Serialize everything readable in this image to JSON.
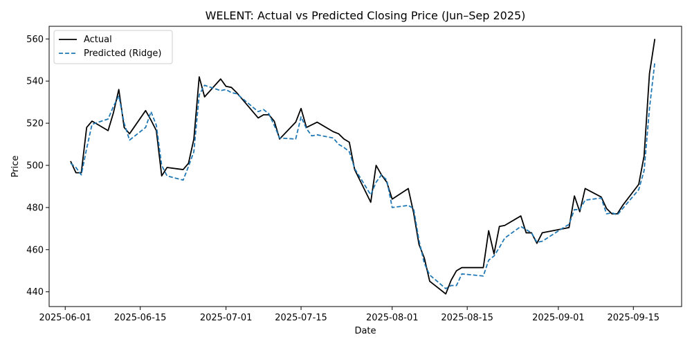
{
  "chart_data": {
    "type": "line",
    "title": "WELENT: Actual vs Predicted Closing Price (Jun–Sep 2025)",
    "xlabel": "Date",
    "ylabel": "Price",
    "xlim": [
      "2025-05-29",
      "2025-09-24"
    ],
    "ylim": [
      433,
      566
    ],
    "x_ticks": [
      "2025-06-01",
      "2025-06-15",
      "2025-07-01",
      "2025-07-15",
      "2025-08-01",
      "2025-08-15",
      "2025-09-01",
      "2025-09-15"
    ],
    "y_ticks": [
      440,
      460,
      480,
      500,
      520,
      540,
      560
    ],
    "grid": false,
    "legend": "upper-left",
    "series": [
      {
        "name": "Actual",
        "color": "#000000",
        "style": "solid",
        "points": [
          [
            "2025-06-02",
            502.0
          ],
          [
            "2025-06-03",
            496.5
          ],
          [
            "2025-06-04",
            496.5
          ],
          [
            "2025-06-05",
            518.0
          ],
          [
            "2025-06-06",
            521.0
          ],
          [
            "2025-06-09",
            516.5
          ],
          [
            "2025-06-10",
            525.0
          ],
          [
            "2025-06-11",
            536.0
          ],
          [
            "2025-06-12",
            518.0
          ],
          [
            "2025-06-13",
            515.0
          ],
          [
            "2025-06-16",
            526.0
          ],
          [
            "2025-06-17",
            521.5
          ],
          [
            "2025-06-18",
            516.5
          ],
          [
            "2025-06-19",
            495.0
          ],
          [
            "2025-06-20",
            499.0
          ],
          [
            "2025-06-23",
            498.0
          ],
          [
            "2025-06-24",
            501.0
          ],
          [
            "2025-06-25",
            512.5
          ],
          [
            "2025-06-26",
            542.0
          ],
          [
            "2025-06-27",
            532.5
          ],
          [
            "2025-06-30",
            541.0
          ],
          [
            "2025-07-01",
            537.5
          ],
          [
            "2025-07-02",
            537.0
          ],
          [
            "2025-07-03",
            534.5
          ],
          [
            "2025-07-07",
            522.5
          ],
          [
            "2025-07-08",
            524.0
          ],
          [
            "2025-07-09",
            524.0
          ],
          [
            "2025-07-10",
            521.0
          ],
          [
            "2025-07-11",
            512.5
          ],
          [
            "2025-07-14",
            520.5
          ],
          [
            "2025-07-15",
            527.0
          ],
          [
            "2025-07-16",
            518.0
          ],
          [
            "2025-07-18",
            520.5
          ],
          [
            "2025-07-21",
            516.0
          ],
          [
            "2025-07-22",
            515.0
          ],
          [
            "2025-07-23",
            512.5
          ],
          [
            "2025-07-24",
            511.0
          ],
          [
            "2025-07-25",
            498.0
          ],
          [
            "2025-07-28",
            482.5
          ],
          [
            "2025-07-29",
            500.0
          ],
          [
            "2025-07-30",
            495.5
          ],
          [
            "2025-07-31",
            492.0
          ],
          [
            "2025-08-01",
            484.0
          ],
          [
            "2025-08-04",
            489.0
          ],
          [
            "2025-08-05",
            477.5
          ],
          [
            "2025-08-06",
            462.5
          ],
          [
            "2025-08-07",
            456.0
          ],
          [
            "2025-08-08",
            445.0
          ],
          [
            "2025-08-11",
            439.0
          ],
          [
            "2025-08-12",
            445.5
          ],
          [
            "2025-08-13",
            450.0
          ],
          [
            "2025-08-14",
            451.5
          ],
          [
            "2025-08-18",
            451.5
          ],
          [
            "2025-08-19",
            469.0
          ],
          [
            "2025-08-20",
            458.0
          ],
          [
            "2025-08-21",
            471.0
          ],
          [
            "2025-08-22",
            471.5
          ],
          [
            "2025-08-25",
            476.0
          ],
          [
            "2025-08-26",
            468.0
          ],
          [
            "2025-08-27",
            468.0
          ],
          [
            "2025-08-28",
            463.0
          ],
          [
            "2025-08-29",
            468.0
          ],
          [
            "2025-09-02",
            470.0
          ],
          [
            "2025-09-03",
            470.5
          ],
          [
            "2025-09-04",
            485.5
          ],
          [
            "2025-09-05",
            478.0
          ],
          [
            "2025-09-06",
            489.0
          ],
          [
            "2025-09-09",
            485.0
          ],
          [
            "2025-09-10",
            479.5
          ],
          [
            "2025-09-11",
            477.0
          ],
          [
            "2025-09-12",
            477.0
          ],
          [
            "2025-09-13",
            481.0
          ],
          [
            "2025-09-16",
            491.0
          ],
          [
            "2025-09-17",
            504.5
          ],
          [
            "2025-09-18",
            543.5
          ],
          [
            "2025-09-19",
            560.0
          ]
        ]
      },
      {
        "name": "Predicted (Ridge)",
        "color": "#1f77b4",
        "style": "dashed",
        "points": [
          [
            "2025-06-02",
            501.0
          ],
          [
            "2025-06-03",
            499.0
          ],
          [
            "2025-06-04",
            495.5
          ],
          [
            "2025-06-05",
            508.0
          ],
          [
            "2025-06-06",
            519.5
          ],
          [
            "2025-06-09",
            522.0
          ],
          [
            "2025-06-10",
            528.0
          ],
          [
            "2025-06-11",
            533.0
          ],
          [
            "2025-06-12",
            520.0
          ],
          [
            "2025-06-13",
            512.0
          ],
          [
            "2025-06-16",
            518.0
          ],
          [
            "2025-06-17",
            525.5
          ],
          [
            "2025-06-18",
            519.0
          ],
          [
            "2025-06-19",
            500.0
          ],
          [
            "2025-06-20",
            495.0
          ],
          [
            "2025-06-23",
            493.0
          ],
          [
            "2025-06-24",
            499.5
          ],
          [
            "2025-06-25",
            506.5
          ],
          [
            "2025-06-26",
            533.5
          ],
          [
            "2025-06-27",
            538.0
          ],
          [
            "2025-06-30",
            535.5
          ],
          [
            "2025-07-01",
            536.0
          ],
          [
            "2025-07-02",
            534.5
          ],
          [
            "2025-07-03",
            534.0
          ],
          [
            "2025-07-07",
            525.5
          ],
          [
            "2025-07-08",
            526.5
          ],
          [
            "2025-07-09",
            524.5
          ],
          [
            "2025-07-10",
            519.0
          ],
          [
            "2025-07-11",
            513.0
          ],
          [
            "2025-07-14",
            512.5
          ],
          [
            "2025-07-15",
            523.0
          ],
          [
            "2025-07-16",
            517.5
          ],
          [
            "2025-07-17",
            514.0
          ],
          [
            "2025-07-18",
            514.5
          ],
          [
            "2025-07-21",
            513.0
          ],
          [
            "2025-07-22",
            510.0
          ],
          [
            "2025-07-23",
            508.5
          ],
          [
            "2025-07-24",
            506.5
          ],
          [
            "2025-07-25",
            498.5
          ],
          [
            "2025-07-28",
            486.0
          ],
          [
            "2025-07-29",
            492.0
          ],
          [
            "2025-07-30",
            495.5
          ],
          [
            "2025-07-31",
            493.0
          ],
          [
            "2025-08-01",
            480.0
          ],
          [
            "2025-08-04",
            481.0
          ],
          [
            "2025-08-05",
            479.5
          ],
          [
            "2025-08-06",
            464.5
          ],
          [
            "2025-08-07",
            453.5
          ],
          [
            "2025-08-08",
            448.0
          ],
          [
            "2025-08-11",
            441.5
          ],
          [
            "2025-08-12",
            443.0
          ],
          [
            "2025-08-13",
            443.0
          ],
          [
            "2025-08-14",
            448.5
          ],
          [
            "2025-08-18",
            447.5
          ],
          [
            "2025-08-19",
            455.0
          ],
          [
            "2025-08-20",
            457.0
          ],
          [
            "2025-08-21",
            461.0
          ],
          [
            "2025-08-22",
            465.5
          ],
          [
            "2025-08-25",
            471.0
          ],
          [
            "2025-08-26",
            469.5
          ],
          [
            "2025-08-27",
            468.0
          ],
          [
            "2025-08-28",
            463.5
          ],
          [
            "2025-08-29",
            464.0
          ],
          [
            "2025-09-02",
            470.5
          ],
          [
            "2025-09-03",
            472.0
          ],
          [
            "2025-09-04",
            479.0
          ],
          [
            "2025-09-05",
            479.0
          ],
          [
            "2025-09-06",
            483.5
          ],
          [
            "2025-09-09",
            484.5
          ],
          [
            "2025-09-10",
            477.0
          ],
          [
            "2025-09-11",
            477.5
          ],
          [
            "2025-09-12",
            476.5
          ],
          [
            "2025-09-13",
            479.5
          ],
          [
            "2025-09-16",
            488.5
          ],
          [
            "2025-09-17",
            497.5
          ],
          [
            "2025-09-18",
            527.0
          ],
          [
            "2025-09-19",
            549.0
          ]
        ]
      }
    ]
  }
}
